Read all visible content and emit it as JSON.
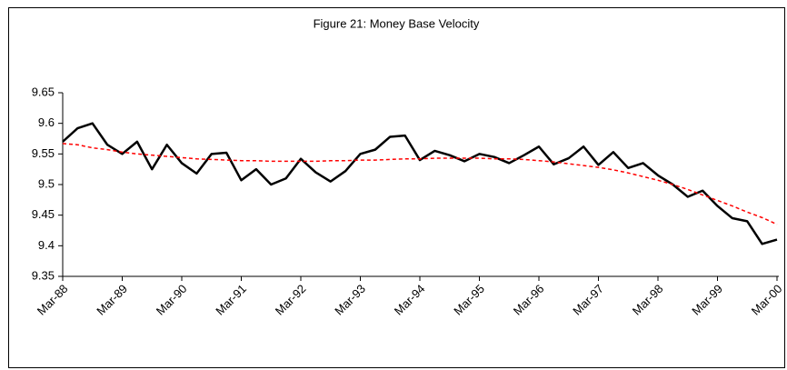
{
  "chart_data": {
    "type": "line",
    "title": "Figure 21: Money Base Velocity",
    "categories": [
      "Mar-88",
      null,
      null,
      null,
      "Mar-89",
      null,
      null,
      null,
      "Mar-90",
      null,
      null,
      null,
      "Mar-91",
      null,
      null,
      null,
      "Mar-92",
      null,
      null,
      null,
      "Mar-93",
      null,
      null,
      null,
      "Mar-94",
      null,
      null,
      null,
      "Mar-95",
      null,
      null,
      null,
      "Mar-96",
      null,
      null,
      null,
      "Mar-97",
      null,
      null,
      null,
      "Mar-98",
      null,
      null,
      null,
      "Mar-99",
      null,
      null,
      null,
      "Mar-00"
    ],
    "series": [
      {
        "color": "#000000",
        "dash": false,
        "values": [
          9.57,
          9.592,
          9.6,
          9.565,
          9.55,
          9.57,
          9.525,
          9.565,
          9.535,
          9.518,
          9.55,
          9.552,
          9.507,
          9.525,
          9.5,
          9.51,
          9.542,
          9.52,
          9.505,
          9.522,
          9.55,
          9.557,
          9.578,
          9.58,
          9.54,
          9.555,
          9.548,
          9.538,
          9.55,
          9.545,
          9.535,
          9.548,
          9.562,
          9.533,
          9.543,
          9.562,
          9.532,
          9.553,
          9.527,
          9.535,
          9.515,
          9.5,
          9.48,
          9.49,
          9.465,
          9.445,
          9.44,
          9.403,
          9.41
        ]
      },
      {
        "color": "#ff0000",
        "dash": true,
        "values": [
          9.567,
          9.565,
          9.56,
          9.557,
          9.553,
          9.55,
          9.548,
          9.546,
          9.544,
          9.542,
          9.541,
          9.54,
          9.539,
          9.539,
          9.538,
          9.538,
          9.538,
          9.538,
          9.539,
          9.539,
          9.54,
          9.54,
          9.541,
          9.542,
          9.542,
          9.543,
          9.543,
          9.543,
          9.543,
          9.542,
          9.542,
          9.541,
          9.539,
          9.537,
          9.534,
          9.531,
          9.528,
          9.524,
          9.519,
          9.513,
          9.507,
          9.5,
          9.492,
          9.483,
          9.474,
          9.465,
          9.455,
          9.446,
          9.435
        ]
      }
    ],
    "ylim": [
      9.35,
      9.65
    ],
    "yticks": [
      9.35,
      9.4,
      9.45,
      9.5,
      9.55,
      9.6,
      9.65
    ],
    "grid": false
  }
}
